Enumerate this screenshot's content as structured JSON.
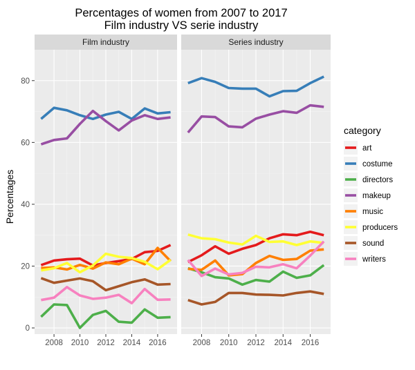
{
  "chart_data": {
    "type": "line",
    "title": "Percentages of women from 2007 to 2017",
    "subtitle": "Film industry VS serie industry",
    "xlabel": "",
    "ylabel": "Percentages",
    "ylim": [
      -2,
      90
    ],
    "yticks": [
      0,
      20,
      40,
      60,
      80
    ],
    "xlim": [
      2006.5,
      2017.5
    ],
    "xticks": [
      2008,
      2010,
      2012,
      2014,
      2016
    ],
    "grid": true,
    "legend": {
      "title": "category",
      "position": "right",
      "entries": [
        "art",
        "costume",
        "directors",
        "makeup",
        "music",
        "producers",
        "sound",
        "writers"
      ]
    },
    "colors": {
      "art": "#e41a1c",
      "costume": "#377eb8",
      "directors": "#4daf4a",
      "makeup": "#984ea3",
      "music": "#ff7f00",
      "producers": "#ffff33",
      "sound": "#a65628",
      "writers": "#f781bf"
    },
    "x": [
      2007,
      2008,
      2009,
      2010,
      2011,
      2012,
      2013,
      2014,
      2015,
      2016,
      2017
    ],
    "panels": [
      {
        "label": "Film industry",
        "series": [
          {
            "name": "art",
            "values": [
              20.3,
              21.8,
              22.2,
              22.4,
              20.2,
              21.0,
              21.6,
              22.3,
              24.5,
              24.9,
              26.8
            ]
          },
          {
            "name": "costume",
            "values": [
              67.6,
              71.2,
              70.4,
              68.8,
              67.6,
              69.0,
              69.9,
              67.6,
              71.0,
              69.4,
              69.8
            ]
          },
          {
            "name": "directors",
            "values": [
              3.6,
              7.6,
              7.4,
              0.0,
              4.2,
              5.5,
              2.0,
              1.7,
              6.0,
              3.3,
              3.5
            ]
          },
          {
            "name": "makeup",
            "values": [
              59.4,
              60.8,
              61.3,
              66.0,
              70.2,
              66.9,
              63.9,
              67.1,
              68.8,
              67.6,
              68.1
            ]
          },
          {
            "name": "music",
            "values": [
              19.4,
              19.6,
              18.9,
              20.4,
              19.2,
              21.2,
              20.6,
              22.4,
              20.6,
              25.9,
              21.6
            ]
          },
          {
            "name": "producers",
            "values": [
              18.6,
              19.3,
              21.0,
              18.0,
              20.2,
              24.0,
              23.0,
              22.6,
              21.4,
              19.0,
              22.0
            ]
          },
          {
            "name": "sound",
            "values": [
              16.1,
              14.6,
              15.3,
              16.0,
              15.1,
              12.2,
              13.5,
              14.8,
              15.7,
              14.0,
              14.2
            ]
          },
          {
            "name": "writers",
            "values": [
              9.0,
              9.8,
              13.2,
              10.5,
              9.4,
              9.8,
              10.7,
              8.0,
              12.6,
              9.1,
              9.2
            ]
          }
        ]
      },
      {
        "label": "Series industry",
        "series": [
          {
            "name": "art",
            "values": [
              21.3,
              23.5,
              26.4,
              24.0,
              25.6,
              26.8,
              29.0,
              30.3,
              30.0,
              31.1,
              30.0
            ]
          },
          {
            "name": "costume",
            "values": [
              79.2,
              80.8,
              79.6,
              77.6,
              77.4,
              77.4,
              74.9,
              76.6,
              76.7,
              79.2,
              81.3
            ]
          },
          {
            "name": "directors",
            "values": [
              19.3,
              18.0,
              16.4,
              16.0,
              14.0,
              15.5,
              15.0,
              18.2,
              16.2,
              17.0,
              20.3
            ]
          },
          {
            "name": "makeup",
            "values": [
              63.2,
              68.4,
              68.2,
              65.2,
              64.9,
              67.7,
              69.0,
              70.1,
              69.6,
              72.0,
              71.5
            ]
          },
          {
            "name": "music",
            "values": [
              19.1,
              18.8,
              21.8,
              17.0,
              17.4,
              21.0,
              23.3,
              22.0,
              22.3,
              25.0,
              25.4
            ]
          },
          {
            "name": "producers",
            "values": [
              30.2,
              29.0,
              28.7,
              27.6,
              27.0,
              29.8,
              27.8,
              28.0,
              26.8,
              28.0,
              27.5
            ]
          },
          {
            "name": "sound",
            "values": [
              9.0,
              7.6,
              8.4,
              11.3,
              11.3,
              10.8,
              10.7,
              10.5,
              11.3,
              11.8,
              11.0
            ]
          },
          {
            "name": "writers",
            "values": [
              22.0,
              16.8,
              19.2,
              17.3,
              17.8,
              19.8,
              19.6,
              20.6,
              19.3,
              23.4,
              28.0
            ]
          }
        ]
      }
    ]
  }
}
